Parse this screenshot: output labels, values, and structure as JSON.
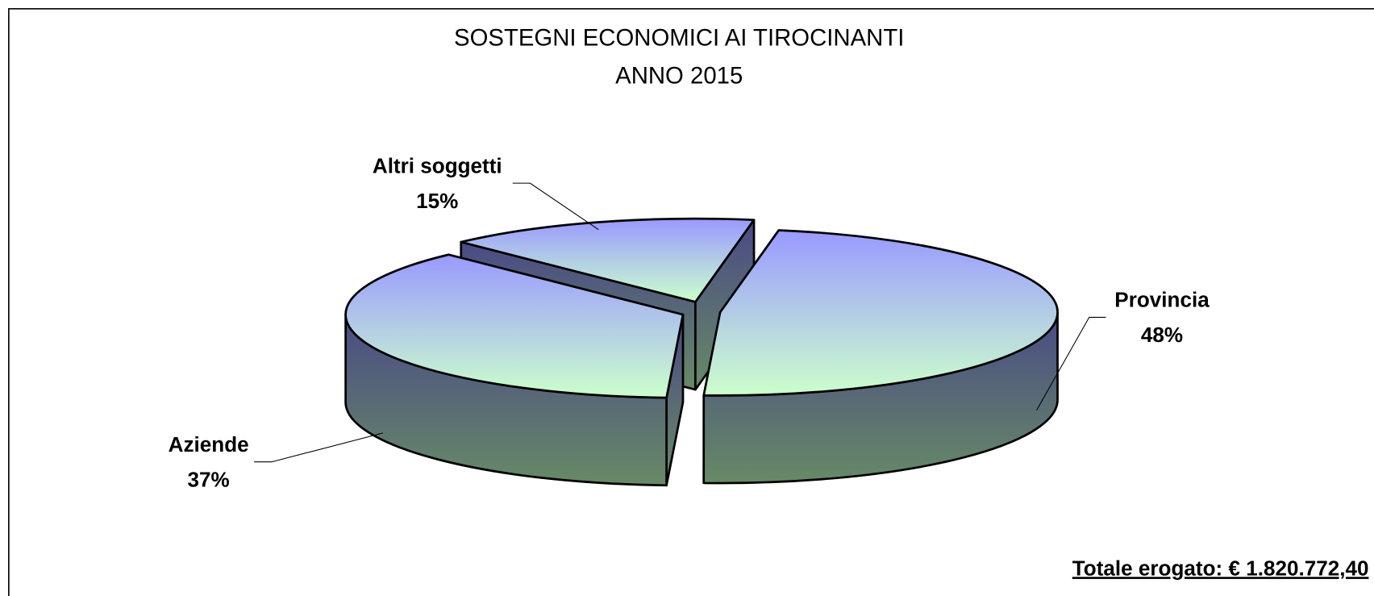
{
  "chart_data": {
    "type": "pie3d",
    "title": "SOSTEGNI ECONOMICI AI TIROCINANTI",
    "subtitle": "ANNO 2015",
    "categories": [
      "Provincia",
      "Aziende",
      "Altri soggetti"
    ],
    "values": [
      48,
      37,
      15
    ],
    "value_labels": [
      "48%",
      "37%",
      "15%"
    ],
    "annotation": "Totale erogato: € 1.820.772,40"
  }
}
